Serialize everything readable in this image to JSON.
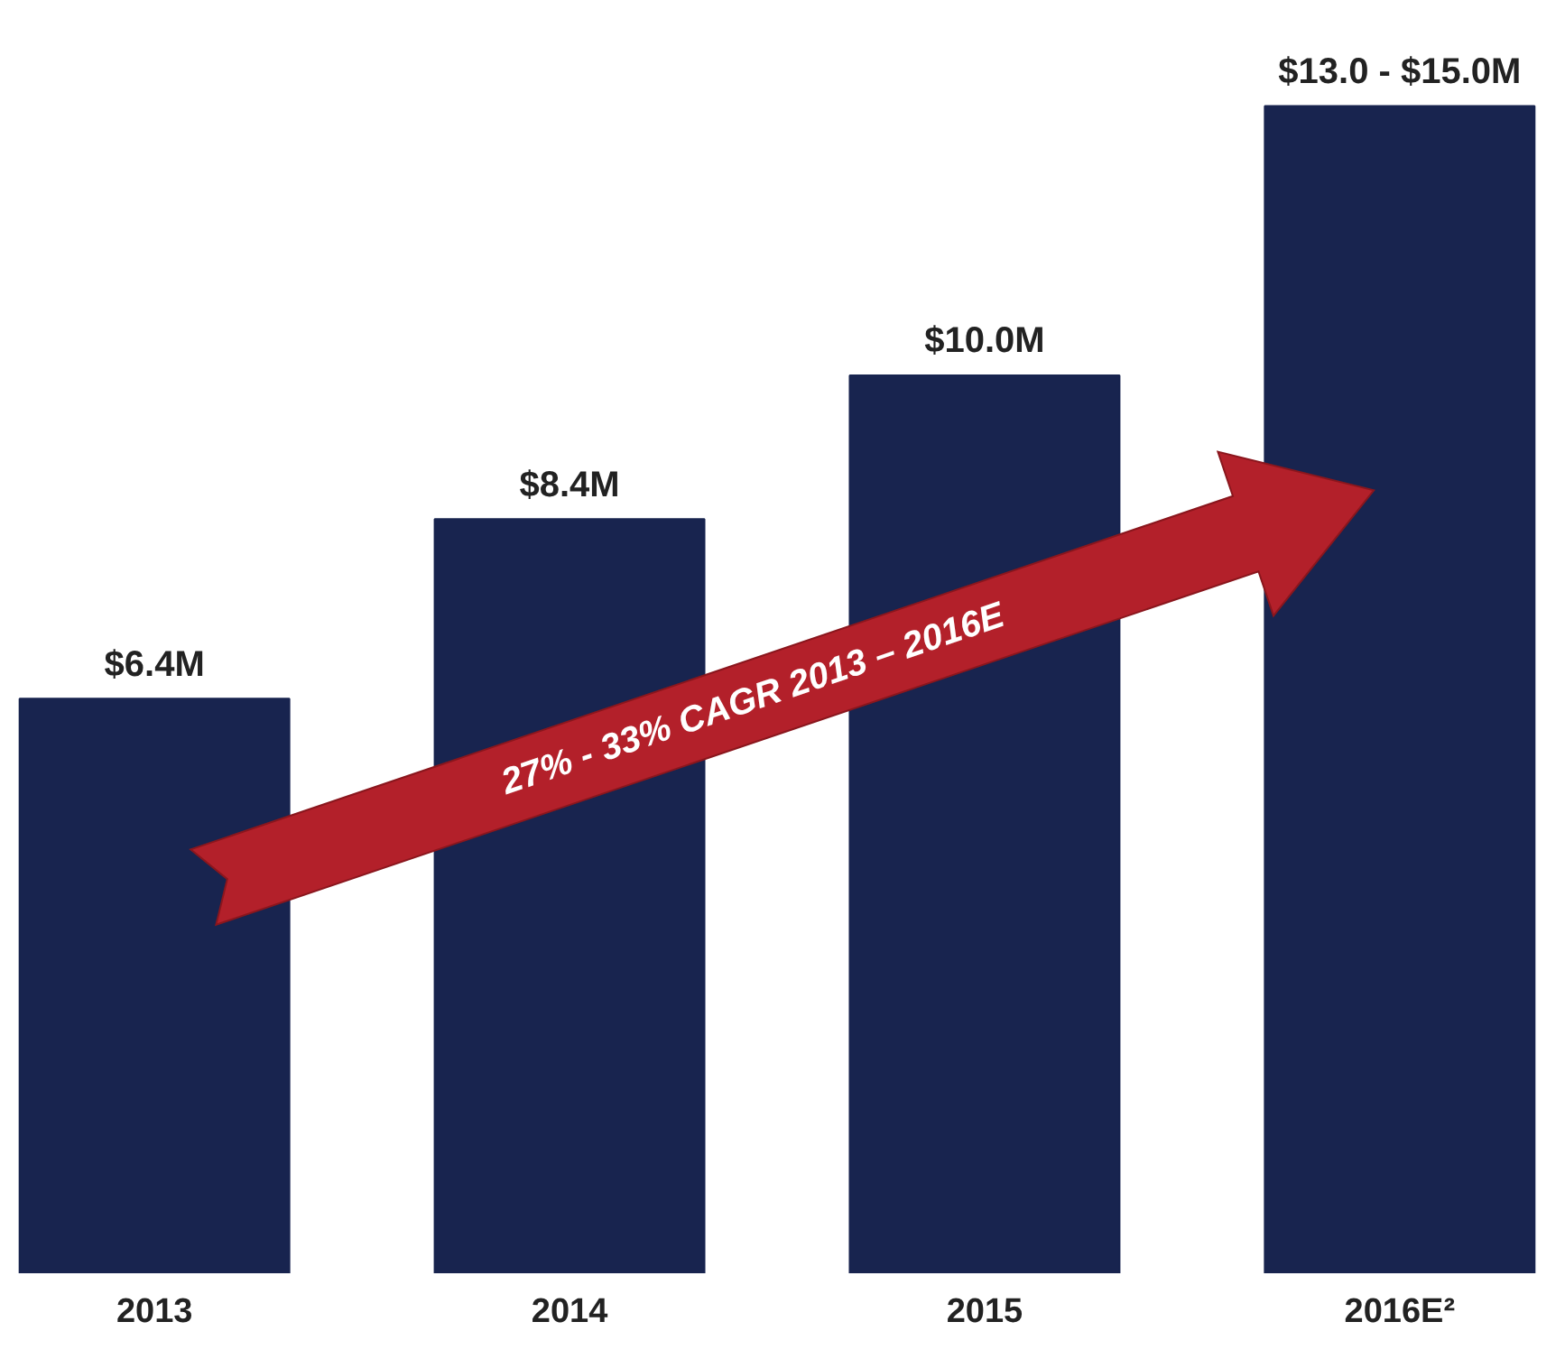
{
  "chart_data": {
    "type": "bar",
    "categories": [
      "2013",
      "2014",
      "2015",
      "2016E²"
    ],
    "values": [
      6.4,
      8.4,
      10.0,
      13.0
    ],
    "color": "#18244f",
    "value_labels": [
      "$6.4M",
      "$8.4M",
      "$10.0M",
      "$13.0 - $15.0M"
    ],
    "grid": false,
    "annotations": [
      "27% - 33% CAGR 2013 – 2016E"
    ]
  }
}
